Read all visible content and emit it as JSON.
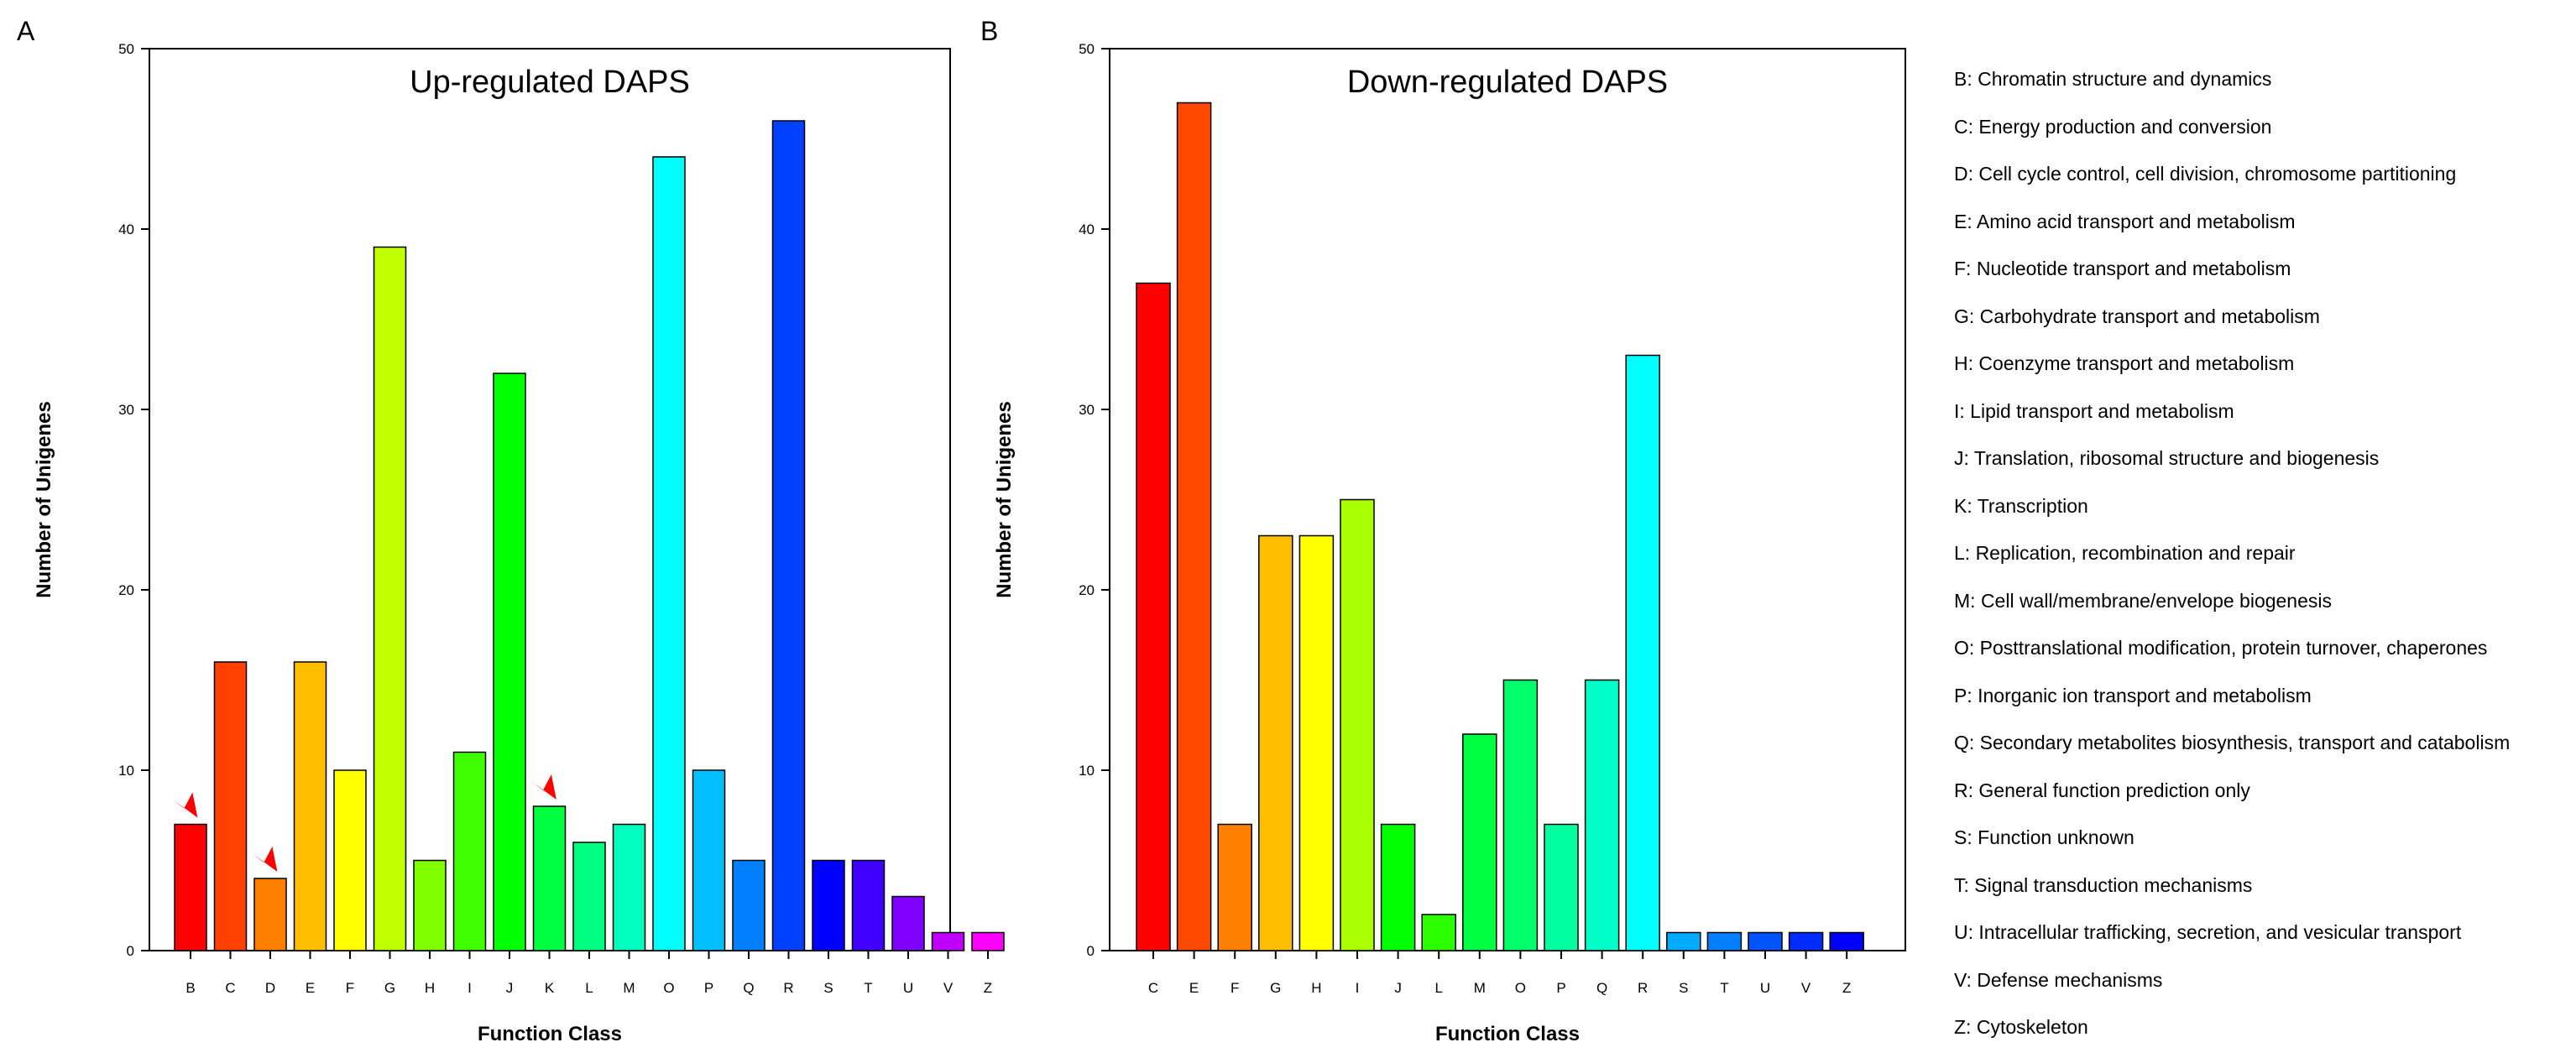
{
  "chart_data": [
    {
      "type": "bar",
      "panel_label": "A",
      "title": "Up-regulated DAPS",
      "xlabel": "Function Class",
      "ylabel": "Number of Unigenes",
      "ylim": [
        0,
        50
      ],
      "yticks": [
        0,
        10,
        20,
        30,
        40,
        50
      ],
      "categories": [
        "B",
        "C",
        "D",
        "E",
        "F",
        "G",
        "H",
        "I",
        "J",
        "K",
        "L",
        "M",
        "O",
        "P",
        "Q",
        "R",
        "S",
        "T",
        "U",
        "V",
        "Z"
      ],
      "values": [
        7,
        16,
        4,
        16,
        10,
        39,
        5,
        11,
        32,
        8,
        6,
        7,
        44,
        10,
        5,
        46,
        5,
        5,
        3,
        1,
        1
      ],
      "colors": [
        "#ff0000",
        "#ff4000",
        "#ff8000",
        "#ffbf00",
        "#ffff00",
        "#bfff00",
        "#80ff00",
        "#40ff00",
        "#00ff00",
        "#00ff40",
        "#00ff80",
        "#00ffbf",
        "#00ffff",
        "#00bfff",
        "#0080ff",
        "#0040ff",
        "#0000ff",
        "#4000ff",
        "#8000ff",
        "#bf00ff",
        "#ff00ff"
      ],
      "annotations": [
        {
          "category": "B",
          "marker": "red-arrow"
        },
        {
          "category": "D",
          "marker": "red-arrow"
        },
        {
          "category": "K",
          "marker": "red-arrow"
        }
      ]
    },
    {
      "type": "bar",
      "panel_label": "B",
      "title": "Down-regulated DAPS",
      "xlabel": "Function Class",
      "ylabel": "Number of Unigenes",
      "ylim": [
        0,
        50
      ],
      "yticks": [
        0,
        10,
        20,
        30,
        40,
        50
      ],
      "categories": [
        "C",
        "E",
        "F",
        "G",
        "H",
        "I",
        "J",
        "L",
        "M",
        "O",
        "P",
        "Q",
        "R",
        "S",
        "T",
        "U",
        "V",
        "Z"
      ],
      "values": [
        37,
        47,
        7,
        23,
        23,
        25,
        7,
        2,
        12,
        15,
        7,
        15,
        33,
        1,
        1,
        1,
        1,
        1
      ],
      "colors": [
        "#ff0000",
        "#ff4800",
        "#ff8000",
        "#ffbf00",
        "#ffff00",
        "#aaff00",
        "#00ff00",
        "#2bff00",
        "#00ff40",
        "#00ff6a",
        "#00ff9e",
        "#00ffc8",
        "#00ffff",
        "#00aaff",
        "#0080ff",
        "#0055ff",
        "#002bff",
        "#0000ff"
      ]
    }
  ],
  "legend": [
    "B: Chromatin structure and dynamics",
    "C: Energy production and conversion",
    "D: Cell cycle control, cell division, chromosome partitioning",
    "E: Amino acid transport and metabolism",
    "F: Nucleotide transport and metabolism",
    "G: Carbohydrate transport and metabolism",
    "H: Coenzyme transport and metabolism",
    "I: Lipid transport and metabolism",
    "J: Translation, ribosomal structure and biogenesis",
    "K: Transcription",
    "L: Replication, recombination and repair",
    "M: Cell wall/membrane/envelope biogenesis",
    "O: Posttranslational modification, protein turnover, chaperones",
    "P: Inorganic ion transport and metabolism",
    "Q: Secondary metabolites biosynthesis, transport and catabolism",
    "R: General function prediction only",
    "S: Function unknown",
    "T: Signal transduction mechanisms",
    "U: Intracellular trafficking, secretion, and vesicular transport",
    "V: Defense mechanisms",
    "Z: Cytoskeleton"
  ]
}
